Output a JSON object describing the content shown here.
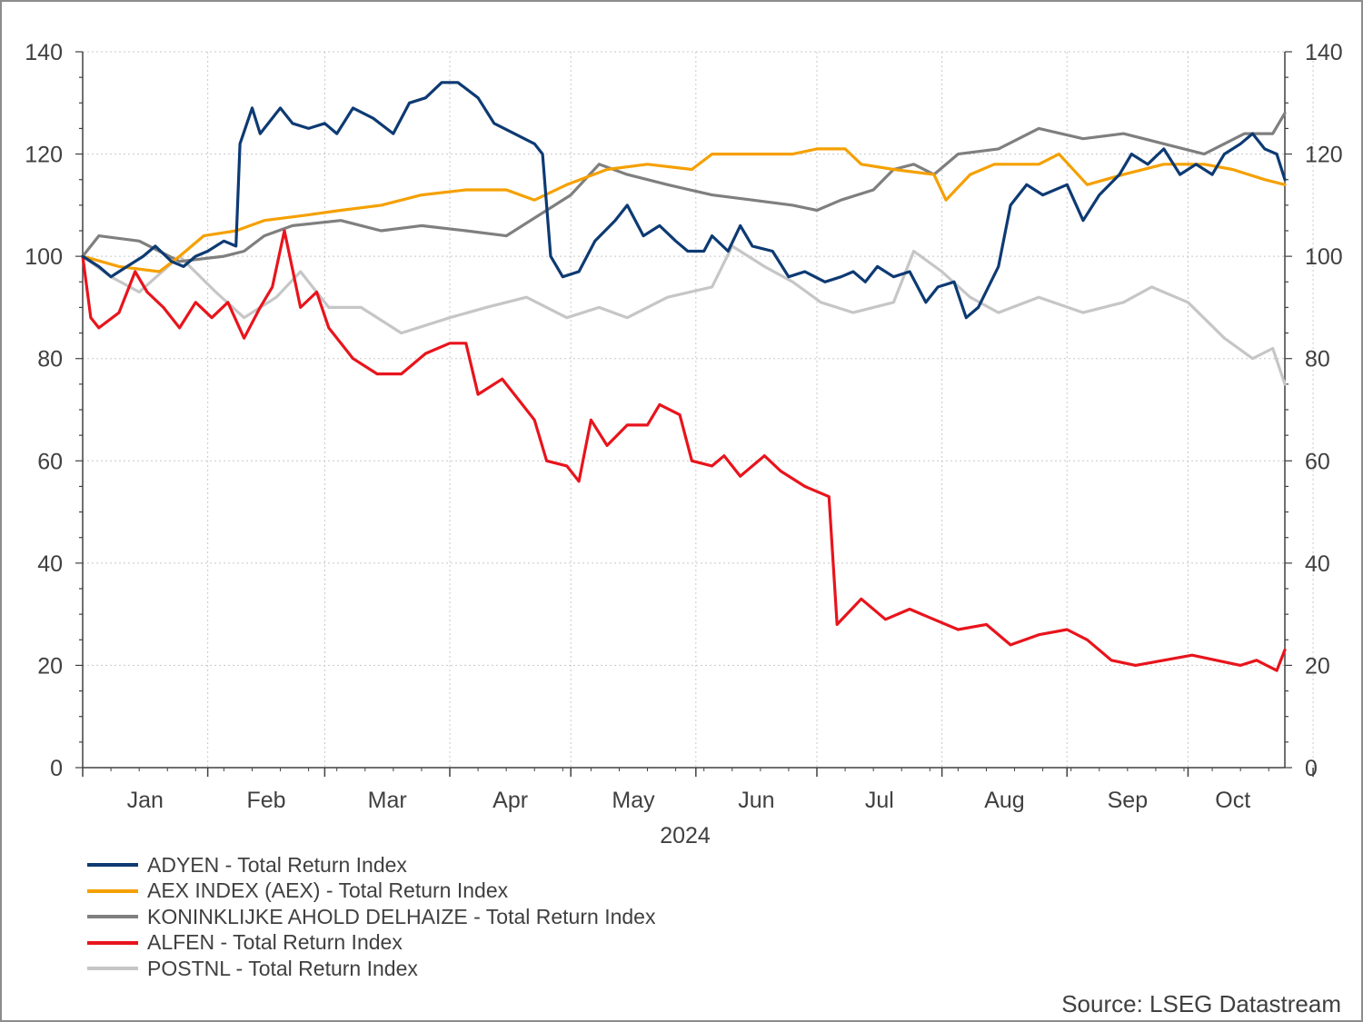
{
  "chart_data": {
    "type": "line",
    "year_label": "2024",
    "x_labels": [
      "Jan",
      "Feb",
      "Mar",
      "Apr",
      "May",
      "Jun",
      "Jul",
      "Aug",
      "Sep",
      "Oct"
    ],
    "y_ticks": [
      "0",
      "20",
      "40",
      "60",
      "80",
      "100",
      "120",
      "140"
    ],
    "ylim": [
      0,
      140
    ],
    "xlim": [
      "2024-01-01",
      "2024-10-25"
    ],
    "grid": true,
    "legend_position": "bottom-left",
    "series": [
      {
        "name": "ADYEN - Total Return Index",
        "color": "#0d3a73",
        "points": [
          [
            "2024-01-01",
            100
          ],
          [
            "2024-01-05",
            98
          ],
          [
            "2024-01-08",
            96
          ],
          [
            "2024-01-12",
            98
          ],
          [
            "2024-01-16",
            100
          ],
          [
            "2024-01-19",
            102
          ],
          [
            "2024-01-23",
            99
          ],
          [
            "2024-01-26",
            98
          ],
          [
            "2024-01-29",
            100
          ],
          [
            "2024-02-01",
            101
          ],
          [
            "2024-02-05",
            103
          ],
          [
            "2024-02-08",
            102
          ],
          [
            "2024-02-09",
            122
          ],
          [
            "2024-02-12",
            129
          ],
          [
            "2024-02-14",
            124
          ],
          [
            "2024-02-19",
            129
          ],
          [
            "2024-02-22",
            126
          ],
          [
            "2024-02-26",
            125
          ],
          [
            "2024-03-01",
            126
          ],
          [
            "2024-03-04",
            124
          ],
          [
            "2024-03-08",
            129
          ],
          [
            "2024-03-13",
            127
          ],
          [
            "2024-03-18",
            124
          ],
          [
            "2024-03-22",
            130
          ],
          [
            "2024-03-26",
            131
          ],
          [
            "2024-03-30",
            134
          ],
          [
            "2024-04-03",
            134
          ],
          [
            "2024-04-08",
            131
          ],
          [
            "2024-04-12",
            126
          ],
          [
            "2024-04-17",
            124
          ],
          [
            "2024-04-22",
            122
          ],
          [
            "2024-04-24",
            120
          ],
          [
            "2024-04-26",
            100
          ],
          [
            "2024-04-29",
            96
          ],
          [
            "2024-05-03",
            97
          ],
          [
            "2024-05-07",
            103
          ],
          [
            "2024-05-12",
            107
          ],
          [
            "2024-05-15",
            110
          ],
          [
            "2024-05-19",
            104
          ],
          [
            "2024-05-23",
            106
          ],
          [
            "2024-05-27",
            103
          ],
          [
            "2024-05-30",
            101
          ],
          [
            "2024-06-03",
            101
          ],
          [
            "2024-06-05",
            104
          ],
          [
            "2024-06-09",
            101
          ],
          [
            "2024-06-12",
            106
          ],
          [
            "2024-06-15",
            102
          ],
          [
            "2024-06-20",
            101
          ],
          [
            "2024-06-24",
            96
          ],
          [
            "2024-06-28",
            97
          ],
          [
            "2024-07-03",
            95
          ],
          [
            "2024-07-07",
            96
          ],
          [
            "2024-07-10",
            97
          ],
          [
            "2024-07-13",
            95
          ],
          [
            "2024-07-16",
            98
          ],
          [
            "2024-07-20",
            96
          ],
          [
            "2024-07-24",
            97
          ],
          [
            "2024-07-28",
            91
          ],
          [
            "2024-07-31",
            94
          ],
          [
            "2024-08-04",
            95
          ],
          [
            "2024-08-07",
            88
          ],
          [
            "2024-08-10",
            90
          ],
          [
            "2024-08-15",
            98
          ],
          [
            "2024-08-18",
            110
          ],
          [
            "2024-08-22",
            114
          ],
          [
            "2024-08-26",
            112
          ],
          [
            "2024-09-01",
            114
          ],
          [
            "2024-09-05",
            107
          ],
          [
            "2024-09-09",
            112
          ],
          [
            "2024-09-14",
            116
          ],
          [
            "2024-09-17",
            120
          ],
          [
            "2024-09-21",
            118
          ],
          [
            "2024-09-25",
            121
          ],
          [
            "2024-09-29",
            116
          ],
          [
            "2024-10-03",
            118
          ],
          [
            "2024-10-07",
            116
          ],
          [
            "2024-10-10",
            120
          ],
          [
            "2024-10-14",
            122
          ],
          [
            "2024-10-17",
            124
          ],
          [
            "2024-10-20",
            121
          ],
          [
            "2024-10-23",
            120
          ],
          [
            "2024-10-25",
            115
          ]
        ]
      },
      {
        "name": "AEX INDEX (AEX) - Total Return Index",
        "color": "#f5a000",
        "points": [
          [
            "2024-01-01",
            100
          ],
          [
            "2024-01-10",
            98
          ],
          [
            "2024-01-20",
            97
          ],
          [
            "2024-01-25",
            100
          ],
          [
            "2024-01-31",
            104
          ],
          [
            "2024-02-08",
            105
          ],
          [
            "2024-02-15",
            107
          ],
          [
            "2024-02-25",
            108
          ],
          [
            "2024-03-05",
            109
          ],
          [
            "2024-03-15",
            110
          ],
          [
            "2024-03-25",
            112
          ],
          [
            "2024-04-05",
            113
          ],
          [
            "2024-04-15",
            113
          ],
          [
            "2024-04-22",
            111
          ],
          [
            "2024-04-30",
            114
          ],
          [
            "2024-05-10",
            117
          ],
          [
            "2024-05-20",
            118
          ],
          [
            "2024-05-31",
            117
          ],
          [
            "2024-06-05",
            120
          ],
          [
            "2024-06-15",
            120
          ],
          [
            "2024-06-25",
            120
          ],
          [
            "2024-07-01",
            121
          ],
          [
            "2024-07-08",
            121
          ],
          [
            "2024-07-12",
            118
          ],
          [
            "2024-07-20",
            117
          ],
          [
            "2024-07-30",
            116
          ],
          [
            "2024-08-02",
            111
          ],
          [
            "2024-08-08",
            116
          ],
          [
            "2024-08-14",
            118
          ],
          [
            "2024-08-25",
            118
          ],
          [
            "2024-08-30",
            120
          ],
          [
            "2024-09-06",
            114
          ],
          [
            "2024-09-15",
            116
          ],
          [
            "2024-09-25",
            118
          ],
          [
            "2024-10-05",
            118
          ],
          [
            "2024-10-12",
            117
          ],
          [
            "2024-10-20",
            115
          ],
          [
            "2024-10-25",
            114
          ]
        ]
      },
      {
        "name": "KONINKLIJKE AHOLD DELHAIZE - Total Return Index",
        "color": "#7f7f7f",
        "points": [
          [
            "2024-01-01",
            100
          ],
          [
            "2024-01-05",
            104
          ],
          [
            "2024-01-15",
            103
          ],
          [
            "2024-01-25",
            99
          ],
          [
            "2024-02-05",
            100
          ],
          [
            "2024-02-10",
            101
          ],
          [
            "2024-02-15",
            104
          ],
          [
            "2024-02-22",
            106
          ],
          [
            "2024-03-05",
            107
          ],
          [
            "2024-03-15",
            105
          ],
          [
            "2024-03-25",
            106
          ],
          [
            "2024-04-05",
            105
          ],
          [
            "2024-04-15",
            104
          ],
          [
            "2024-04-25",
            109
          ],
          [
            "2024-05-01",
            112
          ],
          [
            "2024-05-08",
            118
          ],
          [
            "2024-05-15",
            116
          ],
          [
            "2024-05-25",
            114
          ],
          [
            "2024-06-05",
            112
          ],
          [
            "2024-06-15",
            111
          ],
          [
            "2024-06-25",
            110
          ],
          [
            "2024-07-01",
            109
          ],
          [
            "2024-07-07",
            111
          ],
          [
            "2024-07-15",
            113
          ],
          [
            "2024-07-20",
            117
          ],
          [
            "2024-07-25",
            118
          ],
          [
            "2024-07-30",
            116
          ],
          [
            "2024-08-05",
            120
          ],
          [
            "2024-08-15",
            121
          ],
          [
            "2024-08-25",
            125
          ],
          [
            "2024-09-05",
            123
          ],
          [
            "2024-09-15",
            124
          ],
          [
            "2024-09-25",
            122
          ],
          [
            "2024-10-05",
            120
          ],
          [
            "2024-10-15",
            124
          ],
          [
            "2024-10-22",
            124
          ],
          [
            "2024-10-25",
            128
          ]
        ]
      },
      {
        "name": "ALFEN - Total Return Index",
        "color": "#e8141c",
        "points": [
          [
            "2024-01-01",
            100
          ],
          [
            "2024-01-03",
            88
          ],
          [
            "2024-01-05",
            86
          ],
          [
            "2024-01-10",
            89
          ],
          [
            "2024-01-14",
            97
          ],
          [
            "2024-01-17",
            93
          ],
          [
            "2024-01-21",
            90
          ],
          [
            "2024-01-25",
            86
          ],
          [
            "2024-01-29",
            91
          ],
          [
            "2024-02-02",
            88
          ],
          [
            "2024-02-06",
            91
          ],
          [
            "2024-02-10",
            84
          ],
          [
            "2024-02-14",
            90
          ],
          [
            "2024-02-17",
            94
          ],
          [
            "2024-02-20",
            105
          ],
          [
            "2024-02-24",
            90
          ],
          [
            "2024-02-28",
            93
          ],
          [
            "2024-03-02",
            86
          ],
          [
            "2024-03-08",
            80
          ],
          [
            "2024-03-14",
            77
          ],
          [
            "2024-03-20",
            77
          ],
          [
            "2024-03-26",
            81
          ],
          [
            "2024-04-01",
            83
          ],
          [
            "2024-04-05",
            83
          ],
          [
            "2024-04-08",
            73
          ],
          [
            "2024-04-14",
            76
          ],
          [
            "2024-04-18",
            72
          ],
          [
            "2024-04-22",
            68
          ],
          [
            "2024-04-25",
            60
          ],
          [
            "2024-04-30",
            59
          ],
          [
            "2024-05-03",
            56
          ],
          [
            "2024-05-06",
            68
          ],
          [
            "2024-05-10",
            63
          ],
          [
            "2024-05-15",
            67
          ],
          [
            "2024-05-20",
            67
          ],
          [
            "2024-05-23",
            71
          ],
          [
            "2024-05-28",
            69
          ],
          [
            "2024-05-31",
            60
          ],
          [
            "2024-06-05",
            59
          ],
          [
            "2024-06-08",
            61
          ],
          [
            "2024-06-12",
            57
          ],
          [
            "2024-06-18",
            61
          ],
          [
            "2024-06-22",
            58
          ],
          [
            "2024-06-28",
            55
          ],
          [
            "2024-07-04",
            53
          ],
          [
            "2024-07-06",
            28
          ],
          [
            "2024-07-12",
            33
          ],
          [
            "2024-07-18",
            29
          ],
          [
            "2024-07-24",
            31
          ],
          [
            "2024-07-30",
            29
          ],
          [
            "2024-08-05",
            27
          ],
          [
            "2024-08-12",
            28
          ],
          [
            "2024-08-18",
            24
          ],
          [
            "2024-08-25",
            26
          ],
          [
            "2024-09-01",
            27
          ],
          [
            "2024-09-06",
            25
          ],
          [
            "2024-09-12",
            21
          ],
          [
            "2024-09-18",
            20
          ],
          [
            "2024-09-25",
            21
          ],
          [
            "2024-10-02",
            22
          ],
          [
            "2024-10-08",
            21
          ],
          [
            "2024-10-14",
            20
          ],
          [
            "2024-10-18",
            21
          ],
          [
            "2024-10-23",
            19
          ],
          [
            "2024-10-25",
            23
          ]
        ]
      },
      {
        "name": "POSTNL - Total Return Index",
        "color": "#c6c6c6",
        "points": [
          [
            "2024-01-01",
            100
          ],
          [
            "2024-01-08",
            96
          ],
          [
            "2024-01-15",
            93
          ],
          [
            "2024-01-25",
            100
          ],
          [
            "2024-02-03",
            93
          ],
          [
            "2024-02-10",
            88
          ],
          [
            "2024-02-18",
            92
          ],
          [
            "2024-02-24",
            97
          ],
          [
            "2024-03-02",
            90
          ],
          [
            "2024-03-10",
            90
          ],
          [
            "2024-03-20",
            85
          ],
          [
            "2024-04-01",
            88
          ],
          [
            "2024-04-10",
            90
          ],
          [
            "2024-04-20",
            92
          ],
          [
            "2024-04-30",
            88
          ],
          [
            "2024-05-08",
            90
          ],
          [
            "2024-05-15",
            88
          ],
          [
            "2024-05-25",
            92
          ],
          [
            "2024-06-05",
            94
          ],
          [
            "2024-06-10",
            102
          ],
          [
            "2024-06-18",
            98
          ],
          [
            "2024-06-25",
            95
          ],
          [
            "2024-07-02",
            91
          ],
          [
            "2024-07-10",
            89
          ],
          [
            "2024-07-20",
            91
          ],
          [
            "2024-07-25",
            101
          ],
          [
            "2024-08-01",
            97
          ],
          [
            "2024-08-08",
            92
          ],
          [
            "2024-08-15",
            89
          ],
          [
            "2024-08-25",
            92
          ],
          [
            "2024-09-05",
            89
          ],
          [
            "2024-09-15",
            91
          ],
          [
            "2024-09-22",
            94
          ],
          [
            "2024-10-01",
            91
          ],
          [
            "2024-10-10",
            84
          ],
          [
            "2024-10-17",
            80
          ],
          [
            "2024-10-22",
            82
          ],
          [
            "2024-10-25",
            75
          ]
        ]
      }
    ]
  },
  "source": "Source: LSEG Datastream"
}
